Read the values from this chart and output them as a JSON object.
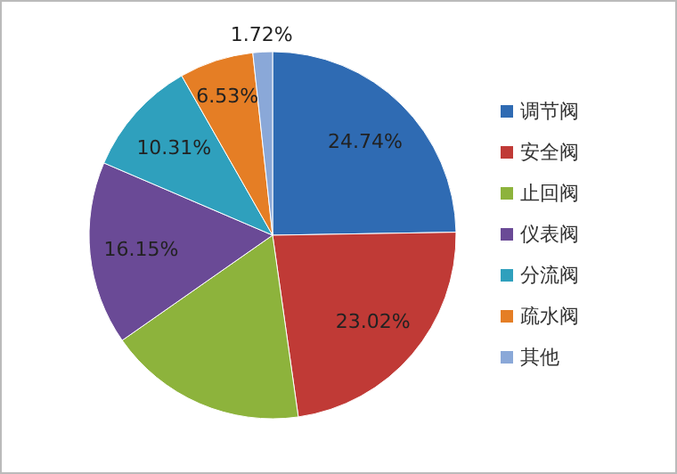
{
  "chart_data": {
    "type": "pie",
    "categories": [
      "调节阀",
      "安全阀",
      "止回阀",
      "仪表阀",
      "分流阀",
      "疏水阀",
      "其他"
    ],
    "values": [
      24.74,
      23.02,
      17.53,
      16.15,
      10.31,
      6.53,
      1.72
    ],
    "colors": [
      "#2f6bb3",
      "#c03a36",
      "#8db33c",
      "#6a4a96",
      "#2fa0bd",
      "#e57e25",
      "#8aa8d8"
    ],
    "value_labels": [
      "24.74%",
      "23.02%",
      null,
      "16.15%",
      "10.31%",
      "6.53%",
      "1.72%"
    ],
    "legend": "right"
  }
}
